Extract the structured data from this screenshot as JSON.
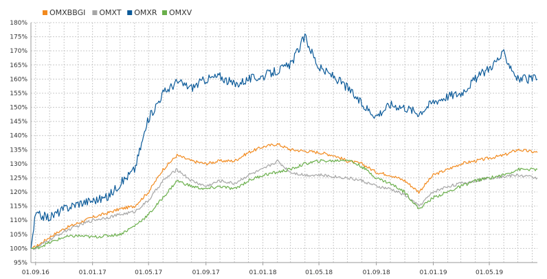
{
  "chart_data": {
    "type": "line",
    "legend_position": "top-left",
    "grid": true,
    "yticks": [
      "180%",
      "175%",
      "170%",
      "165%",
      "160%",
      "155%",
      "150%",
      "145%",
      "140%",
      "135%",
      "130%",
      "125%",
      "120%",
      "115%",
      "110%",
      "105%",
      "100%",
      "95%"
    ],
    "xticks": [
      "01.09.16",
      "01.01.17",
      "01.05.17",
      "01.09.17",
      "01.01.18",
      "01.05.18",
      "01.09.18",
      "01.01.19",
      "01.05.19"
    ],
    "ylim": [
      95,
      180
    ],
    "xlim": [
      "2016-08-22",
      "2019-08-12"
    ],
    "series": [
      {
        "name": "OMXBBGI",
        "color": "#f28a1e",
        "points": [
          [
            "2016-08-22",
            100
          ],
          [
            "2016-09-01",
            100.5
          ],
          [
            "2016-10-01",
            104
          ],
          [
            "2016-11-01",
            107
          ],
          [
            "2016-12-01",
            109
          ],
          [
            "2017-01-01",
            111
          ],
          [
            "2017-02-01",
            112.5
          ],
          [
            "2017-03-01",
            114
          ],
          [
            "2017-04-01",
            115
          ],
          [
            "2017-05-01",
            120
          ],
          [
            "2017-06-01",
            128
          ],
          [
            "2017-07-01",
            133
          ],
          [
            "2017-08-01",
            131
          ],
          [
            "2017-09-01",
            130
          ],
          [
            "2017-10-01",
            131
          ],
          [
            "2017-11-01",
            131
          ],
          [
            "2017-12-01",
            134
          ],
          [
            "2018-01-01",
            136
          ],
          [
            "2018-02-01",
            137
          ],
          [
            "2018-03-01",
            135
          ],
          [
            "2018-04-01",
            134.5
          ],
          [
            "2018-05-01",
            134
          ],
          [
            "2018-06-01",
            133
          ],
          [
            "2018-07-01",
            131
          ],
          [
            "2018-08-01",
            130
          ],
          [
            "2018-09-01",
            127
          ],
          [
            "2018-10-01",
            126
          ],
          [
            "2018-11-01",
            124
          ],
          [
            "2018-12-01",
            120
          ],
          [
            "2019-01-01",
            126
          ],
          [
            "2019-02-01",
            128
          ],
          [
            "2019-03-01",
            130
          ],
          [
            "2019-04-01",
            131
          ],
          [
            "2019-05-01",
            132
          ],
          [
            "2019-06-01",
            133
          ],
          [
            "2019-07-01",
            135
          ],
          [
            "2019-08-12",
            134
          ]
        ]
      },
      {
        "name": "OMXT",
        "color": "#a6a6a6",
        "points": [
          [
            "2016-08-22",
            100
          ],
          [
            "2016-09-01",
            100
          ],
          [
            "2016-10-01",
            103
          ],
          [
            "2016-11-01",
            106
          ],
          [
            "2016-12-01",
            108
          ],
          [
            "2017-01-01",
            110
          ],
          [
            "2017-02-01",
            111
          ],
          [
            "2017-03-01",
            112
          ],
          [
            "2017-04-01",
            113
          ],
          [
            "2017-05-01",
            117
          ],
          [
            "2017-06-01",
            124
          ],
          [
            "2017-07-01",
            128
          ],
          [
            "2017-08-01",
            124
          ],
          [
            "2017-09-01",
            122
          ],
          [
            "2017-10-01",
            124
          ],
          [
            "2017-11-01",
            123
          ],
          [
            "2017-12-01",
            126
          ],
          [
            "2018-01-01",
            128
          ],
          [
            "2018-02-01",
            131
          ],
          [
            "2018-03-01",
            127
          ],
          [
            "2018-04-01",
            126
          ],
          [
            "2018-05-01",
            126
          ],
          [
            "2018-06-01",
            125.5
          ],
          [
            "2018-07-01",
            125
          ],
          [
            "2018-08-01",
            124
          ],
          [
            "2018-09-01",
            122
          ],
          [
            "2018-10-01",
            121
          ],
          [
            "2018-11-01",
            119
          ],
          [
            "2018-12-01",
            115
          ],
          [
            "2019-01-01",
            120
          ],
          [
            "2019-02-01",
            122
          ],
          [
            "2019-03-01",
            123
          ],
          [
            "2019-04-01",
            124
          ],
          [
            "2019-05-01",
            125
          ],
          [
            "2019-06-01",
            125.5
          ],
          [
            "2019-07-01",
            126
          ],
          [
            "2019-08-12",
            125
          ]
        ]
      },
      {
        "name": "OMXR",
        "color": "#0b5a99",
        "points": [
          [
            "2016-08-22",
            100
          ],
          [
            "2016-09-01",
            112
          ],
          [
            "2016-10-01",
            111
          ],
          [
            "2016-11-01",
            114
          ],
          [
            "2016-12-01",
            116
          ],
          [
            "2017-01-01",
            117
          ],
          [
            "2017-02-01",
            118
          ],
          [
            "2017-03-01",
            123
          ],
          [
            "2017-04-01",
            128
          ],
          [
            "2017-05-01",
            146
          ],
          [
            "2017-06-01",
            155
          ],
          [
            "2017-07-01",
            159
          ],
          [
            "2017-08-01",
            157
          ],
          [
            "2017-09-01",
            160
          ],
          [
            "2017-10-01",
            161
          ],
          [
            "2017-11-01",
            158
          ],
          [
            "2017-12-01",
            160
          ],
          [
            "2018-01-01",
            161
          ],
          [
            "2018-02-01",
            163
          ],
          [
            "2018-03-01",
            165
          ],
          [
            "2018-04-01",
            175
          ],
          [
            "2018-05-01",
            164
          ],
          [
            "2018-06-01",
            161
          ],
          [
            "2018-07-01",
            157
          ],
          [
            "2018-08-01",
            151
          ],
          [
            "2018-09-01",
            147
          ],
          [
            "2018-10-01",
            151
          ],
          [
            "2018-11-01",
            150
          ],
          [
            "2018-12-01",
            148
          ],
          [
            "2019-01-01",
            152
          ],
          [
            "2019-02-01",
            154
          ],
          [
            "2019-03-01",
            155
          ],
          [
            "2019-04-01",
            160
          ],
          [
            "2019-05-01",
            164
          ],
          [
            "2019-06-01",
            169
          ],
          [
            "2019-07-01",
            160
          ],
          [
            "2019-08-12",
            160
          ]
        ]
      },
      {
        "name": "OMXV",
        "color": "#6aaf4b",
        "points": [
          [
            "2016-08-22",
            100
          ],
          [
            "2016-09-01",
            100
          ],
          [
            "2016-10-01",
            102
          ],
          [
            "2016-11-01",
            104
          ],
          [
            "2016-12-01",
            104.5
          ],
          [
            "2017-01-01",
            104
          ],
          [
            "2017-02-01",
            104.5
          ],
          [
            "2017-03-01",
            105
          ],
          [
            "2017-04-01",
            108
          ],
          [
            "2017-05-01",
            112
          ],
          [
            "2017-06-01",
            118
          ],
          [
            "2017-07-01",
            124
          ],
          [
            "2017-08-01",
            122
          ],
          [
            "2017-09-01",
            121
          ],
          [
            "2017-10-01",
            122
          ],
          [
            "2017-11-01",
            121
          ],
          [
            "2017-12-01",
            124
          ],
          [
            "2018-01-01",
            126
          ],
          [
            "2018-02-01",
            127
          ],
          [
            "2018-03-01",
            128
          ],
          [
            "2018-04-01",
            130
          ],
          [
            "2018-05-01",
            131
          ],
          [
            "2018-06-01",
            131
          ],
          [
            "2018-07-01",
            131.5
          ],
          [
            "2018-08-01",
            129
          ],
          [
            "2018-09-01",
            125
          ],
          [
            "2018-10-01",
            123
          ],
          [
            "2018-11-01",
            120
          ],
          [
            "2018-12-01",
            114
          ],
          [
            "2019-01-01",
            118
          ],
          [
            "2019-02-01",
            120
          ],
          [
            "2019-03-01",
            122
          ],
          [
            "2019-04-01",
            124
          ],
          [
            "2019-05-01",
            125
          ],
          [
            "2019-06-01",
            126
          ],
          [
            "2019-07-01",
            128
          ],
          [
            "2019-08-12",
            128
          ]
        ]
      }
    ]
  }
}
